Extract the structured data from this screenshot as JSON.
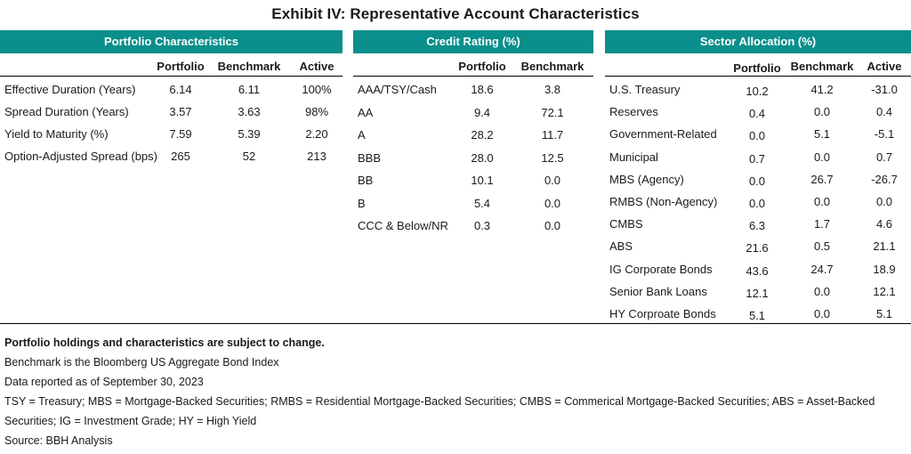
{
  "title": "Exhibit IV: Representative Account Characteristics",
  "portfolio_characteristics": {
    "header": "Portfolio Characteristics",
    "columns": [
      "Portfolio",
      "Benchmark",
      "Active"
    ],
    "rows": [
      {
        "label": "Effective Duration (Years)",
        "portfolio": "6.14",
        "benchmark": "6.11",
        "active": "100%"
      },
      {
        "label": "Spread Duration (Years)",
        "portfolio": "3.57",
        "benchmark": "3.63",
        "active": "98%"
      },
      {
        "label": "Yield to Maturity (%)",
        "portfolio": "7.59",
        "benchmark": "5.39",
        "active": "2.20"
      },
      {
        "label": "Option-Adjusted Spread (bps)",
        "portfolio": "265",
        "benchmark": "52",
        "active": "213"
      }
    ]
  },
  "credit_rating": {
    "header": "Credit Rating (%)",
    "columns": [
      "Portfolio",
      "Benchmark"
    ],
    "rows": [
      {
        "label": "AAA/TSY/Cash",
        "portfolio": "18.6",
        "benchmark": "3.8"
      },
      {
        "label": "AA",
        "portfolio": "9.4",
        "benchmark": "72.1"
      },
      {
        "label": "A",
        "portfolio": "28.2",
        "benchmark": "11.7"
      },
      {
        "label": "BBB",
        "portfolio": "28.0",
        "benchmark": "12.5"
      },
      {
        "label": "BB",
        "portfolio": "10.1",
        "benchmark": "0.0"
      },
      {
        "label": "B",
        "portfolio": "5.4",
        "benchmark": "0.0"
      },
      {
        "label": "CCC & Below/NR",
        "portfolio": "0.3",
        "benchmark": "0.0"
      }
    ]
  },
  "sector_allocation": {
    "header": "Sector Allocation (%)",
    "columns": [
      "Portfolio",
      "Benchmark",
      "Active"
    ],
    "rows": [
      {
        "label": "U.S. Treasury",
        "portfolio": "10.2",
        "benchmark": "41.2",
        "active": "-31.0"
      },
      {
        "label": "Reserves",
        "portfolio": "0.4",
        "benchmark": "0.0",
        "active": "0.4"
      },
      {
        "label": "Government-Related",
        "portfolio": "0.0",
        "benchmark": "5.1",
        "active": "-5.1"
      },
      {
        "label": "Municipal",
        "portfolio": "0.7",
        "benchmark": "0.0",
        "active": "0.7"
      },
      {
        "label": "MBS (Agency)",
        "portfolio": "0.0",
        "benchmark": "26.7",
        "active": "-26.7"
      },
      {
        "label": "RMBS (Non-Agency)",
        "portfolio": "0.0",
        "benchmark": "0.0",
        "active": "0.0"
      },
      {
        "label": "CMBS",
        "portfolio": "6.3",
        "benchmark": "1.7",
        "active": "4.6"
      },
      {
        "label": "ABS",
        "portfolio": "21.6",
        "benchmark": "0.5",
        "active": "21.1"
      },
      {
        "label": "IG Corporate Bonds",
        "portfolio": "43.6",
        "benchmark": "24.7",
        "active": "18.9"
      },
      {
        "label": "Senior Bank Loans",
        "portfolio": "12.1",
        "benchmark": "0.0",
        "active": "12.1"
      },
      {
        "label": "HY Corproate Bonds",
        "portfolio": "5.1",
        "benchmark": "0.0",
        "active": "5.1"
      }
    ]
  },
  "footer": {
    "note_bold": "Portfolio holdings and characteristics are subject to change.",
    "benchmark_note": "Benchmark is the Bloomberg US Aggregate Bond Index",
    "date_note": "Data reported as of September 30, 2023",
    "abbreviations": "TSY = Treasury; MBS = Mortgage-Backed Securities; RMBS = Residential Mortgage-Backed Securities; CMBS = Commerical Mortgage-Backed Securities; ABS = Asset-Backed Securities; IG = Investment Grade; HY = High Yield",
    "source": "Source: BBH Analysis"
  },
  "colors": {
    "header_fill": "#0a8f8c",
    "header_text": "#ffffff"
  }
}
